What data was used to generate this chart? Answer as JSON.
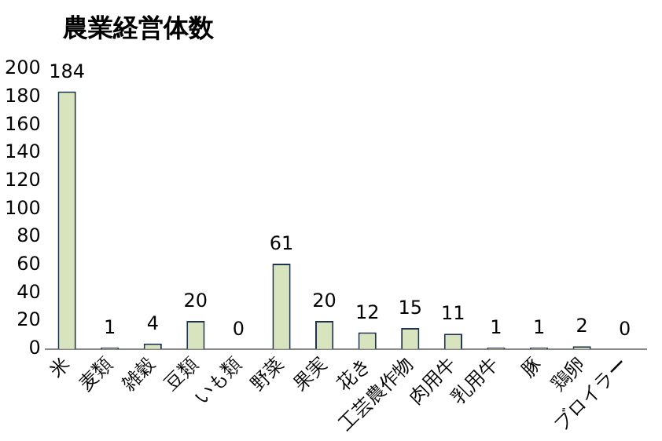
{
  "chart_data": {
    "type": "bar",
    "title": "農業経営体数",
    "categories": [
      "米",
      "麦類",
      "雑穀",
      "豆類",
      "いも類",
      "野菜",
      "果実",
      "花き",
      "工芸農作物",
      "肉用牛",
      "乳用牛",
      "豚",
      "鶏卵",
      "ブロイラー"
    ],
    "values": [
      184,
      1,
      4,
      20,
      0,
      61,
      20,
      12,
      15,
      11,
      1,
      1,
      2,
      0
    ],
    "color": "#d7e4bd",
    "ylim": [
      0,
      200
    ],
    "yticks": [
      0,
      20,
      40,
      60,
      80,
      100,
      120,
      140,
      160,
      180,
      200
    ],
    "grid": false,
    "legend": false,
    "data_labels": true
  }
}
